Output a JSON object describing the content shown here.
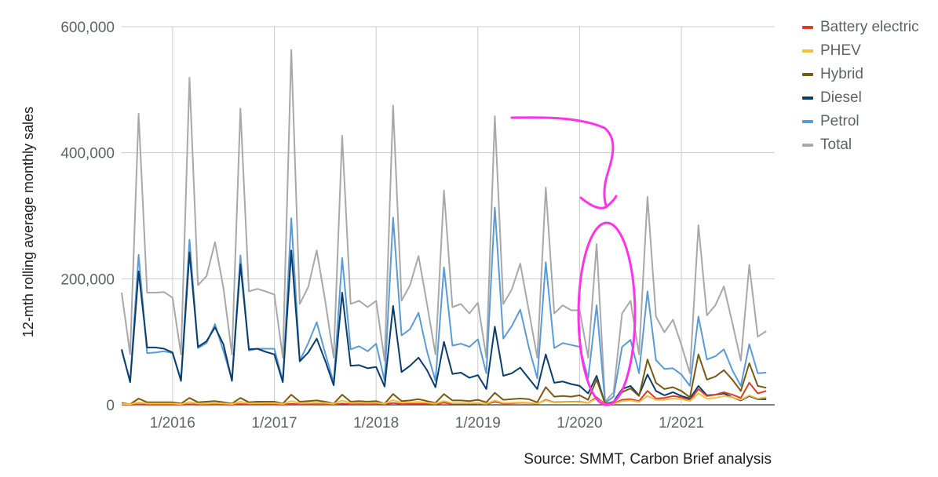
{
  "source": "Source: SMMT, Carbon Brief analysis",
  "chart_data": {
    "type": "line",
    "ylabel": "12-mth rolling average monthly sales",
    "xlabel": "",
    "ylim": [
      0,
      600000
    ],
    "yticks": [
      0,
      200000,
      400000,
      600000
    ],
    "ytick_labels": [
      "0",
      "200,000",
      "400,000",
      "600,000"
    ],
    "xticks": [
      "2016-01",
      "2017-01",
      "2018-01",
      "2019-01",
      "2020-01",
      "2021-01"
    ],
    "xtick_labels": [
      "1/2016",
      "1/2017",
      "1/2018",
      "1/2019",
      "1/2020",
      "1/2021"
    ],
    "x_start": "2015-07",
    "x_end": "2021-12",
    "grid": true,
    "legend_position": "right-top",
    "series": [
      {
        "name": "Total",
        "color": "#a8a8a8",
        "values": [
          178000,
          80000,
          462000,
          178000,
          178000,
          179000,
          170000,
          80000,
          519000,
          190000,
          204000,
          258000,
          185000,
          80000,
          470000,
          180000,
          184000,
          180000,
          175000,
          75000,
          563000,
          160000,
          187000,
          245000,
          165000,
          75000,
          427000,
          160000,
          165000,
          155000,
          165000,
          70000,
          475000,
          165000,
          190000,
          236000,
          160000,
          80000,
          340000,
          155000,
          160000,
          145000,
          162000,
          75000,
          458000,
          160000,
          183000,
          224000,
          150000,
          75000,
          345000,
          145000,
          158000,
          150000,
          150000,
          75000,
          255000,
          5000,
          20000,
          145000,
          165000,
          80000,
          330000,
          140000,
          115000,
          135000,
          95000,
          50000,
          285000,
          142000,
          158000,
          188000,
          130000,
          70000,
          222000,
          108000,
          117000
        ]
      },
      {
        "name": "Petrol",
        "color": "#5b9bd5",
        "values": [
          86000,
          38000,
          238000,
          82000,
          83000,
          85000,
          82000,
          40000,
          262000,
          90000,
          98000,
          128000,
          85000,
          40000,
          237000,
          86000,
          89000,
          89000,
          89000,
          38000,
          296000,
          70000,
          98000,
          131000,
          82000,
          35000,
          233000,
          88000,
          93000,
          85000,
          97000,
          38000,
          297000,
          110000,
          120000,
          146000,
          85000,
          38000,
          218000,
          94000,
          97000,
          92000,
          104000,
          50000,
          313000,
          105000,
          125000,
          151000,
          92000,
          42000,
          226000,
          90000,
          98000,
          95000,
          92000,
          42000,
          158000,
          3000,
          13000,
          92000,
          103000,
          50000,
          180000,
          71000,
          57000,
          58000,
          48000,
          30000,
          140000,
          72000,
          77000,
          88000,
          55000,
          30000,
          96000,
          50000,
          51000
        ]
      },
      {
        "name": "Diesel",
        "color": "#0b3d6b",
        "values": [
          88000,
          36000,
          212000,
          91000,
          91000,
          89000,
          83000,
          38000,
          242000,
          92000,
          101000,
          123000,
          96000,
          38000,
          223000,
          88000,
          89000,
          84000,
          80000,
          36000,
          245000,
          69000,
          83000,
          105000,
          70000,
          31000,
          178000,
          62000,
          63000,
          58000,
          60000,
          29000,
          157000,
          52000,
          62000,
          75000,
          55000,
          28000,
          100000,
          49000,
          51000,
          43000,
          47000,
          25000,
          124000,
          46000,
          50000,
          59000,
          42000,
          25000,
          80000,
          35000,
          37000,
          33000,
          30000,
          18000,
          46000,
          1000,
          5000,
          25000,
          30000,
          15000,
          48000,
          22000,
          15000,
          20000,
          14000,
          10000,
          30000,
          15000,
          16000,
          18000,
          12000,
          7000,
          14000,
          9000,
          9000
        ]
      },
      {
        "name": "Hybrid",
        "color": "#7a5a13",
        "values": [
          3000,
          1000,
          10000,
          4000,
          4000,
          4000,
          4000,
          2000,
          11000,
          4000,
          5000,
          6000,
          4000,
          2000,
          11000,
          4000,
          5000,
          5000,
          5000,
          2000,
          16000,
          5000,
          6000,
          7000,
          5000,
          2000,
          16000,
          5000,
          6000,
          5000,
          6000,
          2000,
          17000,
          6000,
          7000,
          9000,
          6000,
          3000,
          17000,
          7000,
          7000,
          6000,
          8000,
          4000,
          19000,
          8000,
          9000,
          10000,
          9000,
          4000,
          28000,
          13000,
          14000,
          13000,
          15000,
          8000,
          40000,
          2000,
          4000,
          20000,
          26000,
          14000,
          72000,
          35000,
          25000,
          28000,
          22000,
          12000,
          80000,
          40000,
          45000,
          55000,
          40000,
          22000,
          66000,
          30000,
          27000
        ]
      },
      {
        "name": "Battery electric",
        "color": "#d93e2b",
        "values": [
          300,
          200,
          800,
          300,
          400,
          400,
          400,
          300,
          1000,
          400,
          500,
          600,
          500,
          300,
          1200,
          500,
          600,
          600,
          600,
          400,
          1500,
          700,
          800,
          900,
          700,
          500,
          2000,
          900,
          1000,
          1000,
          1000,
          700,
          3000,
          1200,
          1400,
          1600,
          1500,
          900,
          3500,
          1500,
          1700,
          1600,
          1900,
          1200,
          5000,
          2000,
          2500,
          3500,
          3000,
          1800,
          8000,
          4000,
          4500,
          5000,
          5000,
          3000,
          12000,
          1000,
          2000,
          8000,
          9000,
          6000,
          22000,
          10000,
          11000,
          14000,
          12000,
          7000,
          25000,
          14000,
          16000,
          20000,
          16000,
          11000,
          35000,
          18000,
          22000
        ]
      },
      {
        "name": "PHEV",
        "color": "#f2bf3a",
        "values": [
          1500,
          1000,
          4000,
          2000,
          2000,
          2000,
          2000,
          1000,
          4500,
          2000,
          2300,
          2800,
          2200,
          1200,
          5000,
          2300,
          2500,
          2600,
          2700,
          1400,
          6000,
          2800,
          3000,
          3500,
          3000,
          1800,
          7000,
          3000,
          3300,
          3000,
          3200,
          2000,
          7500,
          3500,
          3800,
          4500,
          3500,
          2000,
          6000,
          2700,
          2800,
          2700,
          3000,
          1800,
          7000,
          3000,
          3200,
          3800,
          3200,
          2000,
          7000,
          3500,
          4000,
          4500,
          4500,
          3000,
          10000,
          800,
          1500,
          6000,
          7000,
          4500,
          14000,
          8000,
          8000,
          10000,
          9000,
          6000,
          18000,
          10000,
          11000,
          14000,
          12000,
          8000,
          15000,
          10000,
          12000
        ]
      }
    ],
    "annotations": [
      {
        "kind": "hand-drawn arrow",
        "color": "#ff33e6"
      },
      {
        "kind": "hand-drawn ellipse",
        "color": "#ff33e6"
      }
    ]
  }
}
